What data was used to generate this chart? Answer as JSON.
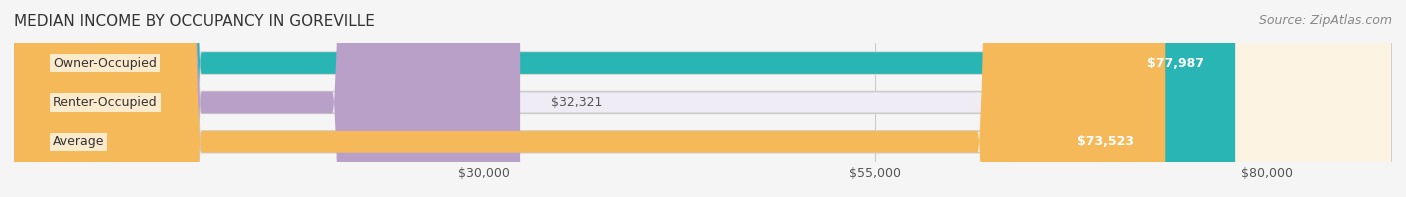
{
  "title": "MEDIAN INCOME BY OCCUPANCY IN GOREVILLE",
  "source": "Source: ZipAtlas.com",
  "categories": [
    "Owner-Occupied",
    "Renter-Occupied",
    "Average"
  ],
  "values": [
    77987,
    32321,
    73523
  ],
  "labels": [
    "$77,987",
    "$32,321",
    "$73,523"
  ],
  "bar_colors": [
    "#2ab5b5",
    "#b8a0c8",
    "#f5b95a"
  ],
  "bar_bg_colors": [
    "#e8f6f6",
    "#f0ecf5",
    "#fdf3e3"
  ],
  "x_ticks": [
    30000,
    55000,
    80000
  ],
  "x_tick_labels": [
    "$30,000",
    "$55,000",
    "$80,000"
  ],
  "x_min": 0,
  "x_max": 88000,
  "title_fontsize": 11,
  "source_fontsize": 9,
  "label_fontsize": 9,
  "tick_fontsize": 9,
  "bar_height": 0.55,
  "background_color": "#f5f5f5"
}
